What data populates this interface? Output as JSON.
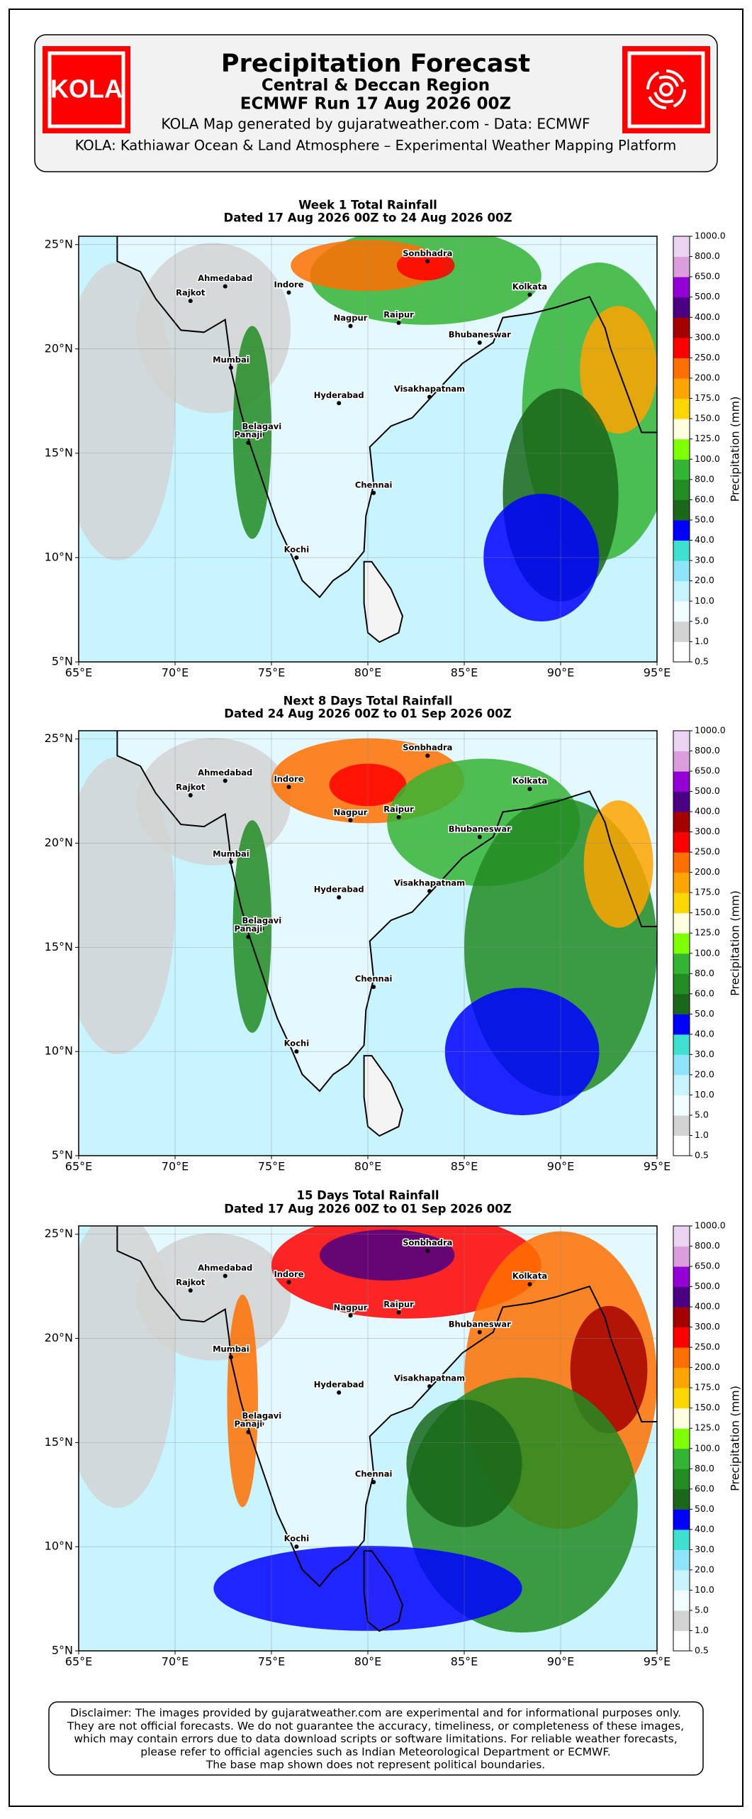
{
  "header": {
    "title": "Precipitation Forecast",
    "subtitle": "Central & Deccan Region",
    "run": "ECMWF Run 17 Aug 2026 00Z",
    "credit": "KOLA Map generated by gujaratweather.com - Data: ECMWF",
    "platform": "KOLA: Kathiawar Ocean & Land Atmosphere – Experimental Weather Mapping Platform",
    "logo_text": "KOLA"
  },
  "panels": [
    {
      "title": "Week 1 Total Rainfall",
      "subtitle": "Dated 17 Aug 2026 00Z to 24 Aug 2026 00Z"
    },
    {
      "title": "Next 8 Days Total Rainfall",
      "subtitle": "Dated 24 Aug 2026 00Z to 01 Sep 2026 00Z"
    },
    {
      "title": "15 Days Total Rainfall",
      "subtitle": "Dated 17 Aug 2026 00Z to 01 Sep 2026 00Z"
    }
  ],
  "map": {
    "lon_range": [
      65,
      95
    ],
    "lat_range": [
      5,
      25.4
    ],
    "lon_ticks": [
      {
        "value": 65,
        "label": "65°E"
      },
      {
        "value": 70,
        "label": "70°E"
      },
      {
        "value": 75,
        "label": "75°E"
      },
      {
        "value": 80,
        "label": "80°E"
      },
      {
        "value": 85,
        "label": "85°E"
      },
      {
        "value": 90,
        "label": "90°E"
      },
      {
        "value": 95,
        "label": "95°E"
      }
    ],
    "lat_ticks": [
      {
        "value": 5,
        "label": "5°N"
      },
      {
        "value": 10,
        "label": "10°N"
      },
      {
        "value": 15,
        "label": "15°N"
      },
      {
        "value": 20,
        "label": "20°N"
      },
      {
        "value": 25,
        "label": "25°N"
      }
    ],
    "grid": true
  },
  "cities": [
    {
      "name": "Ahmedabad",
      "lon": 72.6,
      "lat": 23.0
    },
    {
      "name": "Rajkot",
      "lon": 70.8,
      "lat": 22.3
    },
    {
      "name": "Indore",
      "lon": 75.9,
      "lat": 22.7
    },
    {
      "name": "Sonbhadra",
      "lon": 83.1,
      "lat": 24.2
    },
    {
      "name": "Kolkata",
      "lon": 88.4,
      "lat": 22.6
    },
    {
      "name": "Nagpur",
      "lon": 79.1,
      "lat": 21.1
    },
    {
      "name": "Raipur",
      "lon": 81.6,
      "lat": 21.25
    },
    {
      "name": "Bhubaneswar",
      "lon": 85.8,
      "lat": 20.3
    },
    {
      "name": "Mumbai",
      "lon": 72.9,
      "lat": 19.1
    },
    {
      "name": "Hyderabad",
      "lon": 78.5,
      "lat": 17.4
    },
    {
      "name": "Visakhapatnam",
      "lon": 83.2,
      "lat": 17.7
    },
    {
      "name": "Belagavi",
      "lon": 74.5,
      "lat": 15.9
    },
    {
      "name": "Panaji",
      "lon": 73.8,
      "lat": 15.5
    },
    {
      "name": "Chennai",
      "lon": 80.3,
      "lat": 13.1
    },
    {
      "name": "Kochi",
      "lon": 76.3,
      "lat": 10.0
    }
  ],
  "colorbar": {
    "label": "Precipitation (mm)",
    "levels": [
      "0.5",
      "1.0",
      "5.0",
      "10.0",
      "20.0",
      "30.0",
      "40.0",
      "50.0",
      "60.0",
      "80.0",
      "100.0",
      "125.0",
      "150.0",
      "175.0",
      "200.0",
      "250.0",
      "300.0",
      "400.0",
      "500.0",
      "650.0",
      "800.0",
      "1000.0"
    ],
    "colors": [
      "#ffffff",
      "#d3d3d3",
      "#f0fcff",
      "#c8f4ff",
      "#8fe3fa",
      "#40e0d0",
      "#0000ff",
      "#1a661a",
      "#228b22",
      "#34b434",
      "#7fff00",
      "#ffffe0",
      "#ffd700",
      "#ffa500",
      "#ff7000",
      "#ff0000",
      "#a50000",
      "#4b0082",
      "#9400d3",
      "#da9fda",
      "#ead4f2"
    ]
  },
  "disclaimer": [
    "Disclaimer: The images provided by gujaratweather.com are experimental and for informational purposes only.",
    "They are not official forecasts. We do not guarantee the accuracy, timeliness, or completeness of these images,",
    "which may contain errors due to data download scripts or software limitations. For reliable weather forecasts,",
    "please refer to official agencies such as Indian Meteorological Department or ECMWF.",
    "The base map shown does not represent political boundaries."
  ]
}
